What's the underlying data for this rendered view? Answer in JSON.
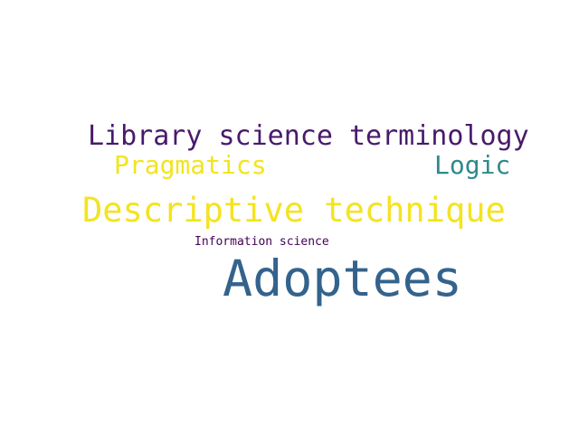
{
  "word_cloud": {
    "background": "#ffffff",
    "words": [
      {
        "text": "Library science terminology",
        "color": "#481a6c"
      },
      {
        "text": "Pragmatics",
        "color": "#f1e51d"
      },
      {
        "text": "Logic",
        "color": "#2e8a8b"
      },
      {
        "text": "Descriptive technique",
        "color": "#f4e320"
      },
      {
        "text": "Information science",
        "color": "#440154"
      },
      {
        "text": "Adoptees",
        "color": "#33638d"
      }
    ]
  }
}
